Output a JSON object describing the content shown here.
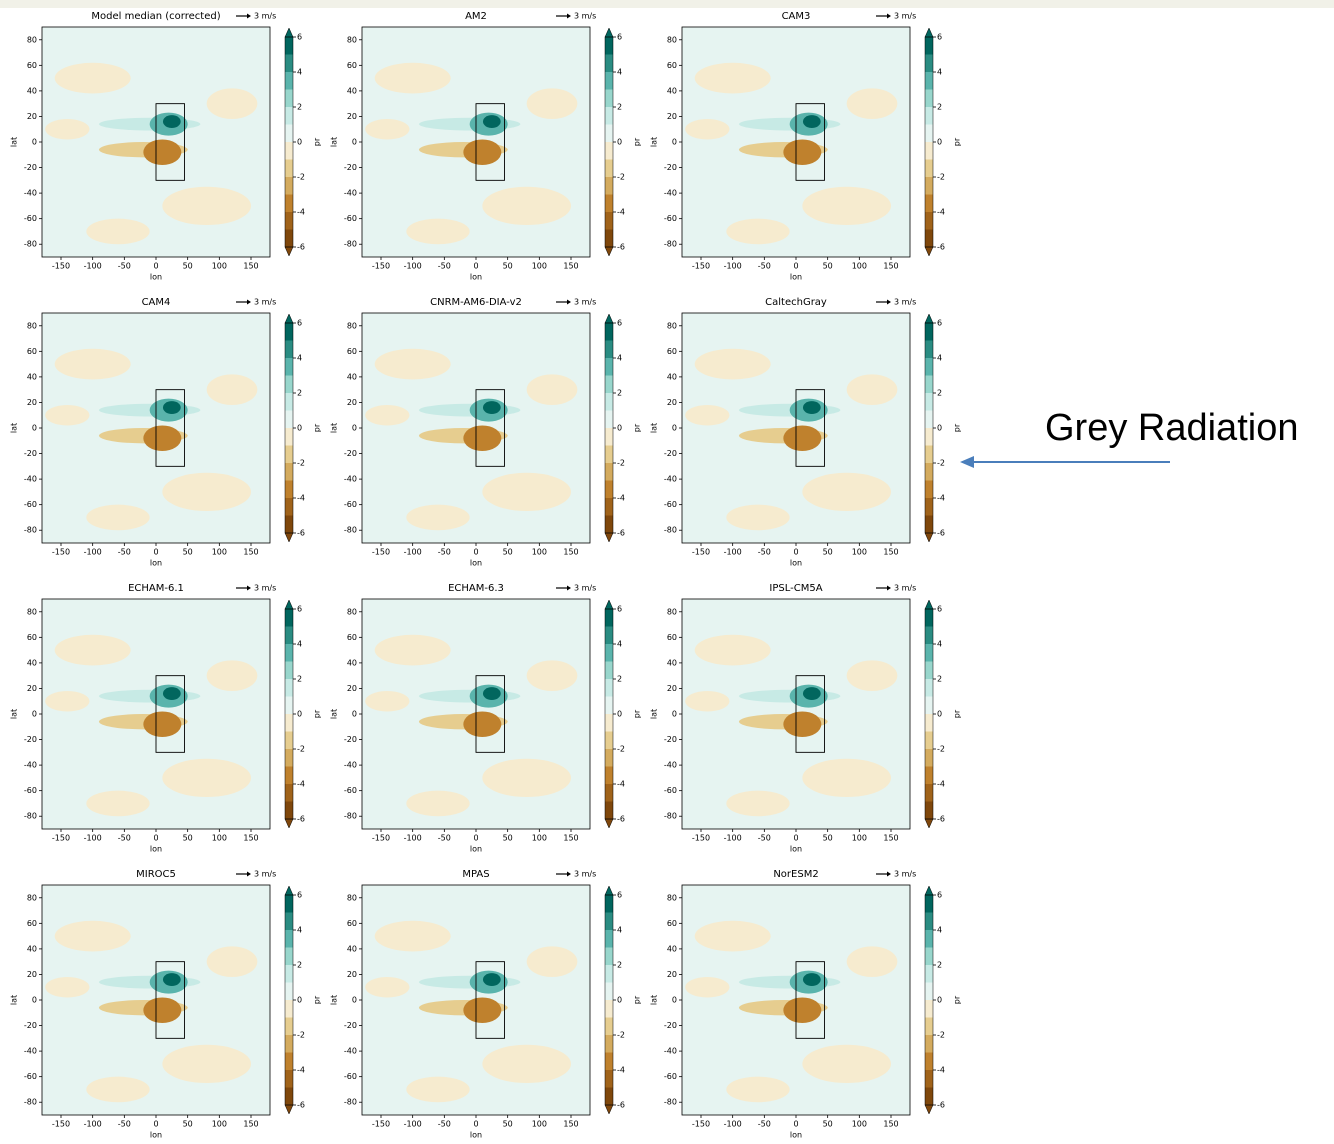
{
  "chart_data": [
    {
      "type": "contour",
      "title": "Model median (corrected)",
      "title_color": "#000000",
      "xlabel": "lon",
      "ylabel": "lat",
      "xlim": [
        -180,
        180
      ],
      "ylim": [
        -90,
        90
      ],
      "xticks": [
        -150,
        -100,
        -50,
        0,
        50,
        100,
        150
      ],
      "yticks": [
        -80,
        -60,
        -40,
        -20,
        0,
        20,
        40,
        60,
        80
      ],
      "box": {
        "lon": [
          0,
          45
        ],
        "lat": [
          -30,
          30
        ]
      },
      "quiver_key": "3 m/s",
      "colorbar": {
        "label": "pr",
        "lim": [
          -6,
          6
        ],
        "ticks": [
          -6,
          -4,
          -2,
          0,
          2,
          4,
          6
        ],
        "colors": [
          "#7f470c",
          "#a0631a",
          "#bf812d",
          "#d4ab5e",
          "#e6cd8f",
          "#f6ebcf",
          "#e6f4f1",
          "#c7eae5",
          "#98d6cc",
          "#5ab4ac",
          "#2a8c82",
          "#01665e"
        ]
      }
    },
    {
      "type": "contour",
      "title": "AM2",
      "title_color": "#ff0000",
      "xlabel": "lon",
      "ylabel": "lat",
      "xlim": [
        -180,
        180
      ],
      "ylim": [
        -90,
        90
      ],
      "xticks": [
        -150,
        -100,
        -50,
        0,
        50,
        100,
        150
      ],
      "yticks": [
        -80,
        -60,
        -40,
        -20,
        0,
        20,
        40,
        60,
        80
      ],
      "box": {
        "lon": [
          0,
          45
        ],
        "lat": [
          -30,
          30
        ]
      },
      "quiver_key": "3 m/s",
      "colorbar": {
        "label": "pr",
        "lim": [
          -6,
          6
        ],
        "ticks": [
          -6,
          -4,
          -2,
          0,
          2,
          4,
          6
        ],
        "colors": [
          "#7f470c",
          "#a0631a",
          "#bf812d",
          "#d4ab5e",
          "#e6cd8f",
          "#f6ebcf",
          "#e6f4f1",
          "#c7eae5",
          "#98d6cc",
          "#5ab4ac",
          "#2a8c82",
          "#01665e"
        ]
      }
    },
    {
      "type": "contour",
      "title": "CAM3",
      "title_color": "#000000",
      "xlabel": "lon",
      "ylabel": "lat",
      "xlim": [
        -180,
        180
      ],
      "ylim": [
        -90,
        90
      ],
      "xticks": [
        -150,
        -100,
        -50,
        0,
        50,
        100,
        150
      ],
      "yticks": [
        -80,
        -60,
        -40,
        -20,
        0,
        20,
        40,
        60,
        80
      ],
      "box": {
        "lon": [
          0,
          45
        ],
        "lat": [
          -30,
          30
        ]
      },
      "quiver_key": "3 m/s",
      "colorbar": {
        "label": "pr",
        "lim": [
          -6,
          6
        ],
        "ticks": [
          -6,
          -4,
          -2,
          0,
          2,
          4,
          6
        ],
        "colors": [
          "#7f470c",
          "#a0631a",
          "#bf812d",
          "#d4ab5e",
          "#e6cd8f",
          "#f6ebcf",
          "#e6f4f1",
          "#c7eae5",
          "#98d6cc",
          "#5ab4ac",
          "#2a8c82",
          "#01665e"
        ]
      }
    },
    {
      "type": "contour",
      "title": "CAM4",
      "title_color": "#000000",
      "xlabel": "lon",
      "ylabel": "lat",
      "xlim": [
        -180,
        180
      ],
      "ylim": [
        -90,
        90
      ],
      "xticks": [
        -150,
        -100,
        -50,
        0,
        50,
        100,
        150
      ],
      "yticks": [
        -80,
        -60,
        -40,
        -20,
        0,
        20,
        40,
        60,
        80
      ],
      "box": {
        "lon": [
          0,
          45
        ],
        "lat": [
          -30,
          30
        ]
      },
      "quiver_key": "3 m/s",
      "colorbar": {
        "label": "pr",
        "lim": [
          -6,
          6
        ],
        "ticks": [
          -6,
          -4,
          -2,
          0,
          2,
          4,
          6
        ],
        "colors": [
          "#7f470c",
          "#a0631a",
          "#bf812d",
          "#d4ab5e",
          "#e6cd8f",
          "#f6ebcf",
          "#e6f4f1",
          "#c7eae5",
          "#98d6cc",
          "#5ab4ac",
          "#2a8c82",
          "#01665e"
        ]
      }
    },
    {
      "type": "contour",
      "title": "CNRM-AM6-DIA-v2",
      "title_color": "#000000",
      "xlabel": "lon",
      "ylabel": "lat",
      "xlim": [
        -180,
        180
      ],
      "ylim": [
        -90,
        90
      ],
      "xticks": [
        -150,
        -100,
        -50,
        0,
        50,
        100,
        150
      ],
      "yticks": [
        -80,
        -60,
        -40,
        -20,
        0,
        20,
        40,
        60,
        80
      ],
      "box": {
        "lon": [
          0,
          45
        ],
        "lat": [
          -30,
          30
        ]
      },
      "quiver_key": "3 m/s",
      "colorbar": {
        "label": "pr",
        "lim": [
          -6,
          6
        ],
        "ticks": [
          -6,
          -4,
          -2,
          0,
          2,
          4,
          6
        ],
        "colors": [
          "#7f470c",
          "#a0631a",
          "#bf812d",
          "#d4ab5e",
          "#e6cd8f",
          "#f6ebcf",
          "#e6f4f1",
          "#c7eae5",
          "#98d6cc",
          "#5ab4ac",
          "#2a8c82",
          "#01665e"
        ]
      }
    },
    {
      "type": "contour",
      "title": "CaltechGray",
      "title_color": "#000000",
      "xlabel": "lon",
      "ylabel": "lat",
      "xlim": [
        -180,
        180
      ],
      "ylim": [
        -90,
        90
      ],
      "xticks": [
        -150,
        -100,
        -50,
        0,
        50,
        100,
        150
      ],
      "yticks": [
        -80,
        -60,
        -40,
        -20,
        0,
        20,
        40,
        60,
        80
      ],
      "box": {
        "lon": [
          0,
          45
        ],
        "lat": [
          -30,
          30
        ]
      },
      "quiver_key": "3 m/s",
      "colorbar": {
        "label": "pr",
        "lim": [
          -6,
          6
        ],
        "ticks": [
          -6,
          -4,
          -2,
          0,
          2,
          4,
          6
        ],
        "colors": [
          "#7f470c",
          "#a0631a",
          "#bf812d",
          "#d4ab5e",
          "#e6cd8f",
          "#f6ebcf",
          "#e6f4f1",
          "#c7eae5",
          "#98d6cc",
          "#5ab4ac",
          "#2a8c82",
          "#01665e"
        ]
      }
    },
    {
      "type": "contour",
      "title": "ECHAM-6.1",
      "title_color": "#000000",
      "xlabel": "lon",
      "ylabel": "lat",
      "xlim": [
        -180,
        180
      ],
      "ylim": [
        -90,
        90
      ],
      "xticks": [
        -150,
        -100,
        -50,
        0,
        50,
        100,
        150
      ],
      "yticks": [
        -80,
        -60,
        -40,
        -20,
        0,
        20,
        40,
        60,
        80
      ],
      "box": {
        "lon": [
          0,
          45
        ],
        "lat": [
          -30,
          30
        ]
      },
      "quiver_key": "3 m/s",
      "colorbar": {
        "label": "pr",
        "lim": [
          -6,
          6
        ],
        "ticks": [
          -6,
          -4,
          -2,
          0,
          2,
          4,
          6
        ],
        "colors": [
          "#7f470c",
          "#a0631a",
          "#bf812d",
          "#d4ab5e",
          "#e6cd8f",
          "#f6ebcf",
          "#e6f4f1",
          "#c7eae5",
          "#98d6cc",
          "#5ab4ac",
          "#2a8c82",
          "#01665e"
        ]
      }
    },
    {
      "type": "contour",
      "title": "ECHAM-6.3",
      "title_color": "#ff0000",
      "xlabel": "lon",
      "ylabel": "lat",
      "xlim": [
        -180,
        180
      ],
      "ylim": [
        -90,
        90
      ],
      "xticks": [
        -150,
        -100,
        -50,
        0,
        50,
        100,
        150
      ],
      "yticks": [
        -80,
        -60,
        -40,
        -20,
        0,
        20,
        40,
        60,
        80
      ],
      "box": {
        "lon": [
          0,
          45
        ],
        "lat": [
          -30,
          30
        ]
      },
      "quiver_key": "3 m/s",
      "colorbar": {
        "label": "pr",
        "lim": [
          -6,
          6
        ],
        "ticks": [
          -6,
          -4,
          -2,
          0,
          2,
          4,
          6
        ],
        "colors": [
          "#7f470c",
          "#a0631a",
          "#bf812d",
          "#d4ab5e",
          "#e6cd8f",
          "#f6ebcf",
          "#e6f4f1",
          "#c7eae5",
          "#98d6cc",
          "#5ab4ac",
          "#2a8c82",
          "#01665e"
        ]
      }
    },
    {
      "type": "contour",
      "title": "IPSL-CM5A",
      "title_color": "#000000",
      "xlabel": "lon",
      "ylabel": "lat",
      "xlim": [
        -180,
        180
      ],
      "ylim": [
        -90,
        90
      ],
      "xticks": [
        -150,
        -100,
        -50,
        0,
        50,
        100,
        150
      ],
      "yticks": [
        -80,
        -60,
        -40,
        -20,
        0,
        20,
        40,
        60,
        80
      ],
      "box": {
        "lon": [
          0,
          45
        ],
        "lat": [
          -30,
          30
        ]
      },
      "quiver_key": "3 m/s",
      "colorbar": {
        "label": "pr",
        "lim": [
          -6,
          6
        ],
        "ticks": [
          -6,
          -4,
          -2,
          0,
          2,
          4,
          6
        ],
        "colors": [
          "#7f470c",
          "#a0631a",
          "#bf812d",
          "#d4ab5e",
          "#e6cd8f",
          "#f6ebcf",
          "#e6f4f1",
          "#c7eae5",
          "#98d6cc",
          "#5ab4ac",
          "#2a8c82",
          "#01665e"
        ]
      }
    },
    {
      "type": "contour",
      "title": "MIROC5",
      "title_color": "#000000",
      "xlabel": "lon",
      "ylabel": "lat",
      "xlim": [
        -180,
        180
      ],
      "ylim": [
        -90,
        90
      ],
      "xticks": [
        -150,
        -100,
        -50,
        0,
        50,
        100,
        150
      ],
      "yticks": [
        -80,
        -60,
        -40,
        -20,
        0,
        20,
        40,
        60,
        80
      ],
      "box": {
        "lon": [
          0,
          45
        ],
        "lat": [
          -30,
          30
        ]
      },
      "quiver_key": "3 m/s",
      "colorbar": {
        "label": "pr",
        "lim": [
          -6,
          6
        ],
        "ticks": [
          -6,
          -4,
          -2,
          0,
          2,
          4,
          6
        ],
        "colors": [
          "#7f470c",
          "#a0631a",
          "#bf812d",
          "#d4ab5e",
          "#e6cd8f",
          "#f6ebcf",
          "#e6f4f1",
          "#c7eae5",
          "#98d6cc",
          "#5ab4ac",
          "#2a8c82",
          "#01665e"
        ]
      }
    },
    {
      "type": "contour",
      "title": "MPAS",
      "title_color": "#000000",
      "xlabel": "lon",
      "ylabel": "lat",
      "xlim": [
        -180,
        180
      ],
      "ylim": [
        -90,
        90
      ],
      "xticks": [
        -150,
        -100,
        -50,
        0,
        50,
        100,
        150
      ],
      "yticks": [
        -80,
        -60,
        -40,
        -20,
        0,
        20,
        40,
        60,
        80
      ],
      "box": {
        "lon": [
          0,
          45
        ],
        "lat": [
          -30,
          30
        ]
      },
      "quiver_key": "3 m/s",
      "colorbar": {
        "label": "pr",
        "lim": [
          -6,
          6
        ],
        "ticks": [
          -6,
          -4,
          -2,
          0,
          2,
          4,
          6
        ],
        "colors": [
          "#7f470c",
          "#a0631a",
          "#bf812d",
          "#d4ab5e",
          "#e6cd8f",
          "#f6ebcf",
          "#e6f4f1",
          "#c7eae5",
          "#98d6cc",
          "#5ab4ac",
          "#2a8c82",
          "#01665e"
        ]
      }
    },
    {
      "type": "contour",
      "title": "NorESM2",
      "title_color": "#000000",
      "xlabel": "lon",
      "ylabel": "lat",
      "xlim": [
        -180,
        180
      ],
      "ylim": [
        -90,
        90
      ],
      "xticks": [
        -150,
        -100,
        -50,
        0,
        50,
        100,
        150
      ],
      "yticks": [
        -80,
        -60,
        -40,
        -20,
        0,
        20,
        40,
        60,
        80
      ],
      "box": {
        "lon": [
          0,
          45
        ],
        "lat": [
          -30,
          30
        ]
      },
      "quiver_key": "3 m/s",
      "colorbar": {
        "label": "pr",
        "lim": [
          -6,
          6
        ],
        "ticks": [
          -6,
          -4,
          -2,
          0,
          2,
          4,
          6
        ],
        "colors": [
          "#7f470c",
          "#a0631a",
          "#bf812d",
          "#d4ab5e",
          "#e6cd8f",
          "#f6ebcf",
          "#e6f4f1",
          "#c7eae5",
          "#98d6cc",
          "#5ab4ac",
          "#2a8c82",
          "#01665e"
        ]
      }
    }
  ],
  "annotation": "Grey Radiation"
}
